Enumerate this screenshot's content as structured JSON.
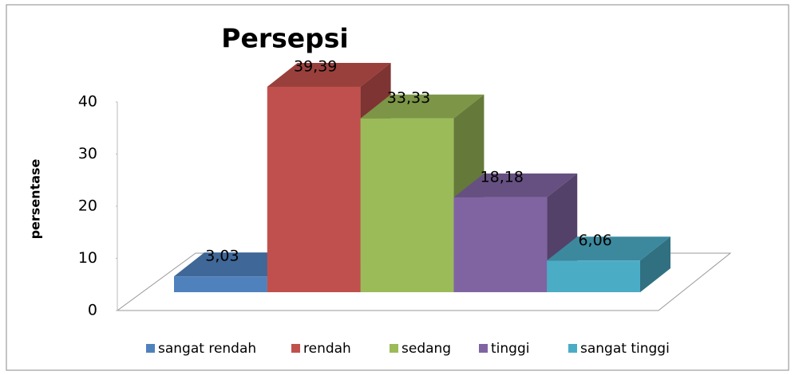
{
  "chart_data": {
    "type": "bar3d",
    "title": "Persepsi",
    "y_label": "persentase",
    "categories": [
      "sangat rendah",
      "rendah",
      "sedang",
      "tinggi",
      "sangat tinggi"
    ],
    "values": [
      3.03,
      39.39,
      33.33,
      18.18,
      6.06
    ],
    "value_labels": [
      "3,03",
      "39,39",
      "33,33",
      "18,18",
      "6,06"
    ],
    "colors": [
      "#4f81bd",
      "#c0504d",
      "#9bbb59",
      "#8064a2",
      "#4bacc6"
    ],
    "ylim": [
      0,
      40
    ],
    "yticks": [
      0,
      10,
      20,
      30,
      40
    ],
    "grid": false,
    "legend": "bottom"
  }
}
